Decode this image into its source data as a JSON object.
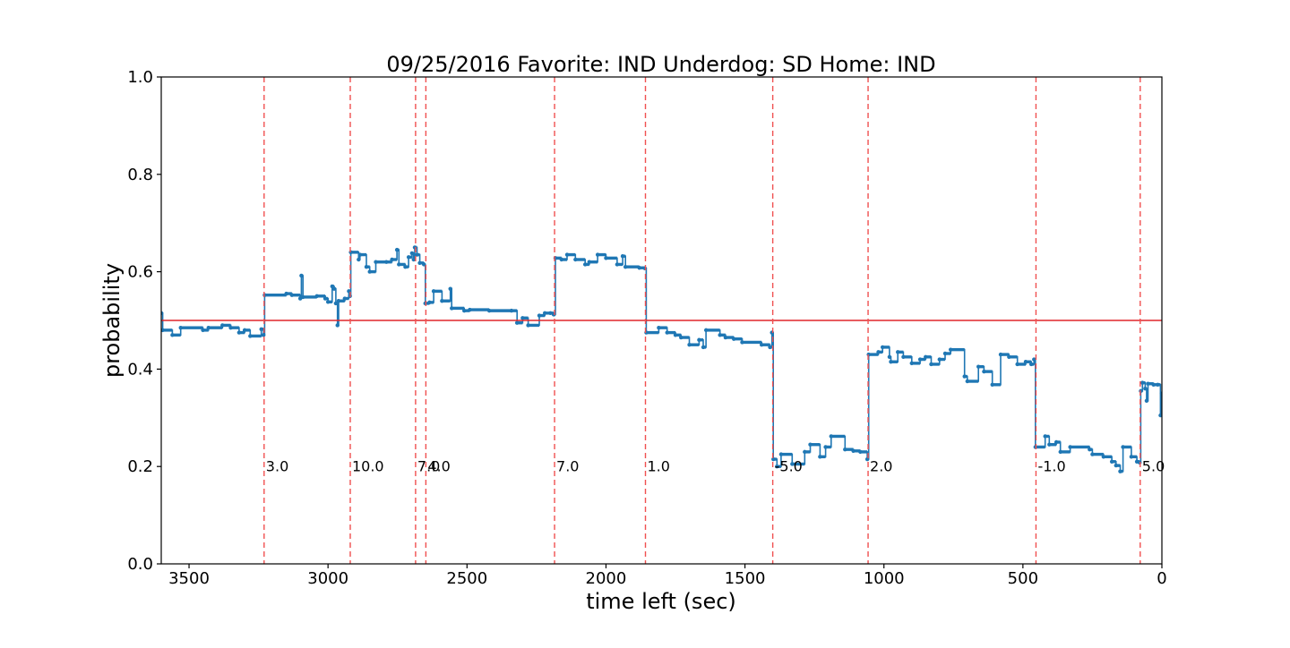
{
  "chart_data": {
    "type": "line",
    "title": "09/25/2016 Favorite: IND Underdog: SD Home: IND",
    "xlabel": "time left (sec)",
    "ylabel": "probability",
    "xlim": [
      3600,
      0
    ],
    "ylim": [
      0,
      1
    ],
    "x_ticks": [
      3500,
      3000,
      2500,
      2000,
      1500,
      1000,
      500,
      0
    ],
    "y_ticks": [
      0.0,
      0.2,
      0.4,
      0.6,
      0.8,
      1.0
    ],
    "x_tick_labels": [
      "3500",
      "3000",
      "2500",
      "2000",
      "1500",
      "1000",
      "500",
      "0"
    ],
    "y_tick_labels": [
      "0.0",
      "0.2",
      "0.4",
      "0.6",
      "0.8",
      "1.0"
    ],
    "grid": false,
    "reference_line": {
      "y": 0.5,
      "color": "#e0262a"
    },
    "series": [
      {
        "color": "#1f77b4",
        "points": [
          [
            3600,
            0.515
          ],
          [
            3595,
            0.48
          ],
          [
            3560,
            0.47
          ],
          [
            3530,
            0.485
          ],
          [
            3450,
            0.48
          ],
          [
            3430,
            0.485
          ],
          [
            3380,
            0.49
          ],
          [
            3350,
            0.485
          ],
          [
            3320,
            0.475
          ],
          [
            3300,
            0.48
          ],
          [
            3280,
            0.468
          ],
          [
            3240,
            0.482
          ],
          [
            3232,
            0.47
          ],
          [
            3228,
            0.552
          ],
          [
            3150,
            0.555
          ],
          [
            3130,
            0.552
          ],
          [
            3100,
            0.545
          ],
          [
            3096,
            0.592
          ],
          [
            3090,
            0.548
          ],
          [
            3040,
            0.55
          ],
          [
            3010,
            0.545
          ],
          [
            3000,
            0.538
          ],
          [
            2985,
            0.57
          ],
          [
            2978,
            0.565
          ],
          [
            2972,
            0.535
          ],
          [
            2966,
            0.49
          ],
          [
            2962,
            0.54
          ],
          [
            2940,
            0.545
          ],
          [
            2925,
            0.56
          ],
          [
            2921,
            0.55
          ],
          [
            2918,
            0.64
          ],
          [
            2890,
            0.625
          ],
          [
            2885,
            0.635
          ],
          [
            2862,
            0.61
          ],
          [
            2850,
            0.6
          ],
          [
            2828,
            0.62
          ],
          [
            2790,
            0.62
          ],
          [
            2770,
            0.625
          ],
          [
            2752,
            0.645
          ],
          [
            2745,
            0.615
          ],
          [
            2722,
            0.61
          ],
          [
            2710,
            0.63
          ],
          [
            2698,
            0.638
          ],
          [
            2692,
            0.625
          ],
          [
            2688,
            0.65
          ],
          [
            2680,
            0.635
          ],
          [
            2670,
            0.618
          ],
          [
            2655,
            0.615
          ],
          [
            2650,
            0.535
          ],
          [
            2635,
            0.537
          ],
          [
            2620,
            0.56
          ],
          [
            2590,
            0.54
          ],
          [
            2560,
            0.565
          ],
          [
            2555,
            0.525
          ],
          [
            2510,
            0.52
          ],
          [
            2490,
            0.522
          ],
          [
            2420,
            0.52
          ],
          [
            2340,
            0.52
          ],
          [
            2320,
            0.495
          ],
          [
            2300,
            0.505
          ],
          [
            2280,
            0.49
          ],
          [
            2240,
            0.51
          ],
          [
            2220,
            0.515
          ],
          [
            2200,
            0.515
          ],
          [
            2188,
            0.512
          ],
          [
            2182,
            0.628
          ],
          [
            2160,
            0.625
          ],
          [
            2140,
            0.635
          ],
          [
            2110,
            0.625
          ],
          [
            2075,
            0.615
          ],
          [
            2060,
            0.62
          ],
          [
            2030,
            0.635
          ],
          [
            2000,
            0.628
          ],
          [
            1960,
            0.615
          ],
          [
            1940,
            0.632
          ],
          [
            1930,
            0.61
          ],
          [
            1880,
            0.608
          ],
          [
            1860,
            0.607
          ],
          [
            1855,
            0.475
          ],
          [
            1810,
            0.485
          ],
          [
            1780,
            0.475
          ],
          [
            1750,
            0.47
          ],
          [
            1730,
            0.465
          ],
          [
            1700,
            0.45
          ],
          [
            1665,
            0.46
          ],
          [
            1650,
            0.445
          ],
          [
            1640,
            0.48
          ],
          [
            1590,
            0.47
          ],
          [
            1570,
            0.465
          ],
          [
            1540,
            0.462
          ],
          [
            1510,
            0.455
          ],
          [
            1440,
            0.45
          ],
          [
            1410,
            0.445
          ],
          [
            1403,
            0.475
          ],
          [
            1398,
            0.215
          ],
          [
            1385,
            0.2
          ],
          [
            1370,
            0.225
          ],
          [
            1330,
            0.205
          ],
          [
            1285,
            0.23
          ],
          [
            1265,
            0.245
          ],
          [
            1230,
            0.22
          ],
          [
            1210,
            0.24
          ],
          [
            1190,
            0.262
          ],
          [
            1140,
            0.235
          ],
          [
            1110,
            0.232
          ],
          [
            1085,
            0.23
          ],
          [
            1060,
            0.215
          ],
          [
            1055,
            0.43
          ],
          [
            1020,
            0.435
          ],
          [
            1005,
            0.445
          ],
          [
            980,
            0.425
          ],
          [
            975,
            0.415
          ],
          [
            950,
            0.435
          ],
          [
            930,
            0.425
          ],
          [
            900,
            0.412
          ],
          [
            870,
            0.42
          ],
          [
            850,
            0.425
          ],
          [
            830,
            0.41
          ],
          [
            800,
            0.42
          ],
          [
            780,
            0.432
          ],
          [
            760,
            0.44
          ],
          [
            710,
            0.385
          ],
          [
            700,
            0.375
          ],
          [
            660,
            0.405
          ],
          [
            640,
            0.395
          ],
          [
            610,
            0.368
          ],
          [
            580,
            0.43
          ],
          [
            550,
            0.425
          ],
          [
            520,
            0.41
          ],
          [
            490,
            0.415
          ],
          [
            470,
            0.41
          ],
          [
            460,
            0.42
          ],
          [
            455,
            0.24
          ],
          [
            420,
            0.262
          ],
          [
            405,
            0.245
          ],
          [
            380,
            0.25
          ],
          [
            365,
            0.23
          ],
          [
            330,
            0.24
          ],
          [
            260,
            0.235
          ],
          [
            250,
            0.225
          ],
          [
            210,
            0.22
          ],
          [
            180,
            0.21
          ],
          [
            165,
            0.202
          ],
          [
            150,
            0.19
          ],
          [
            140,
            0.24
          ],
          [
            110,
            0.22
          ],
          [
            90,
            0.21
          ],
          [
            80,
            0.208
          ],
          [
            76,
            0.355
          ],
          [
            70,
            0.372
          ],
          [
            60,
            0.36
          ],
          [
            55,
            0.335
          ],
          [
            50,
            0.37
          ],
          [
            30,
            0.368
          ],
          [
            15,
            0.368
          ],
          [
            5,
            0.305
          ],
          [
            0,
            0.35
          ]
        ]
      }
    ],
    "score_changes": [
      {
        "x": 3230,
        "label": "3.0"
      },
      {
        "x": 2920,
        "label": "10.0"
      },
      {
        "x": 2685,
        "label": "7.0"
      },
      {
        "x": 2648,
        "label": "4.0"
      },
      {
        "x": 2185,
        "label": "7.0"
      },
      {
        "x": 1858,
        "label": "1.0"
      },
      {
        "x": 1400,
        "label": "-5.0"
      },
      {
        "x": 1057,
        "label": "2.0"
      },
      {
        "x": 453,
        "label": "-1.0"
      },
      {
        "x": 78,
        "label": "5.0"
      }
    ],
    "score_label_y": 0.2,
    "colors": {
      "series": "#1f77b4",
      "vlines": "#f05050",
      "hline": "#e0262a"
    }
  }
}
